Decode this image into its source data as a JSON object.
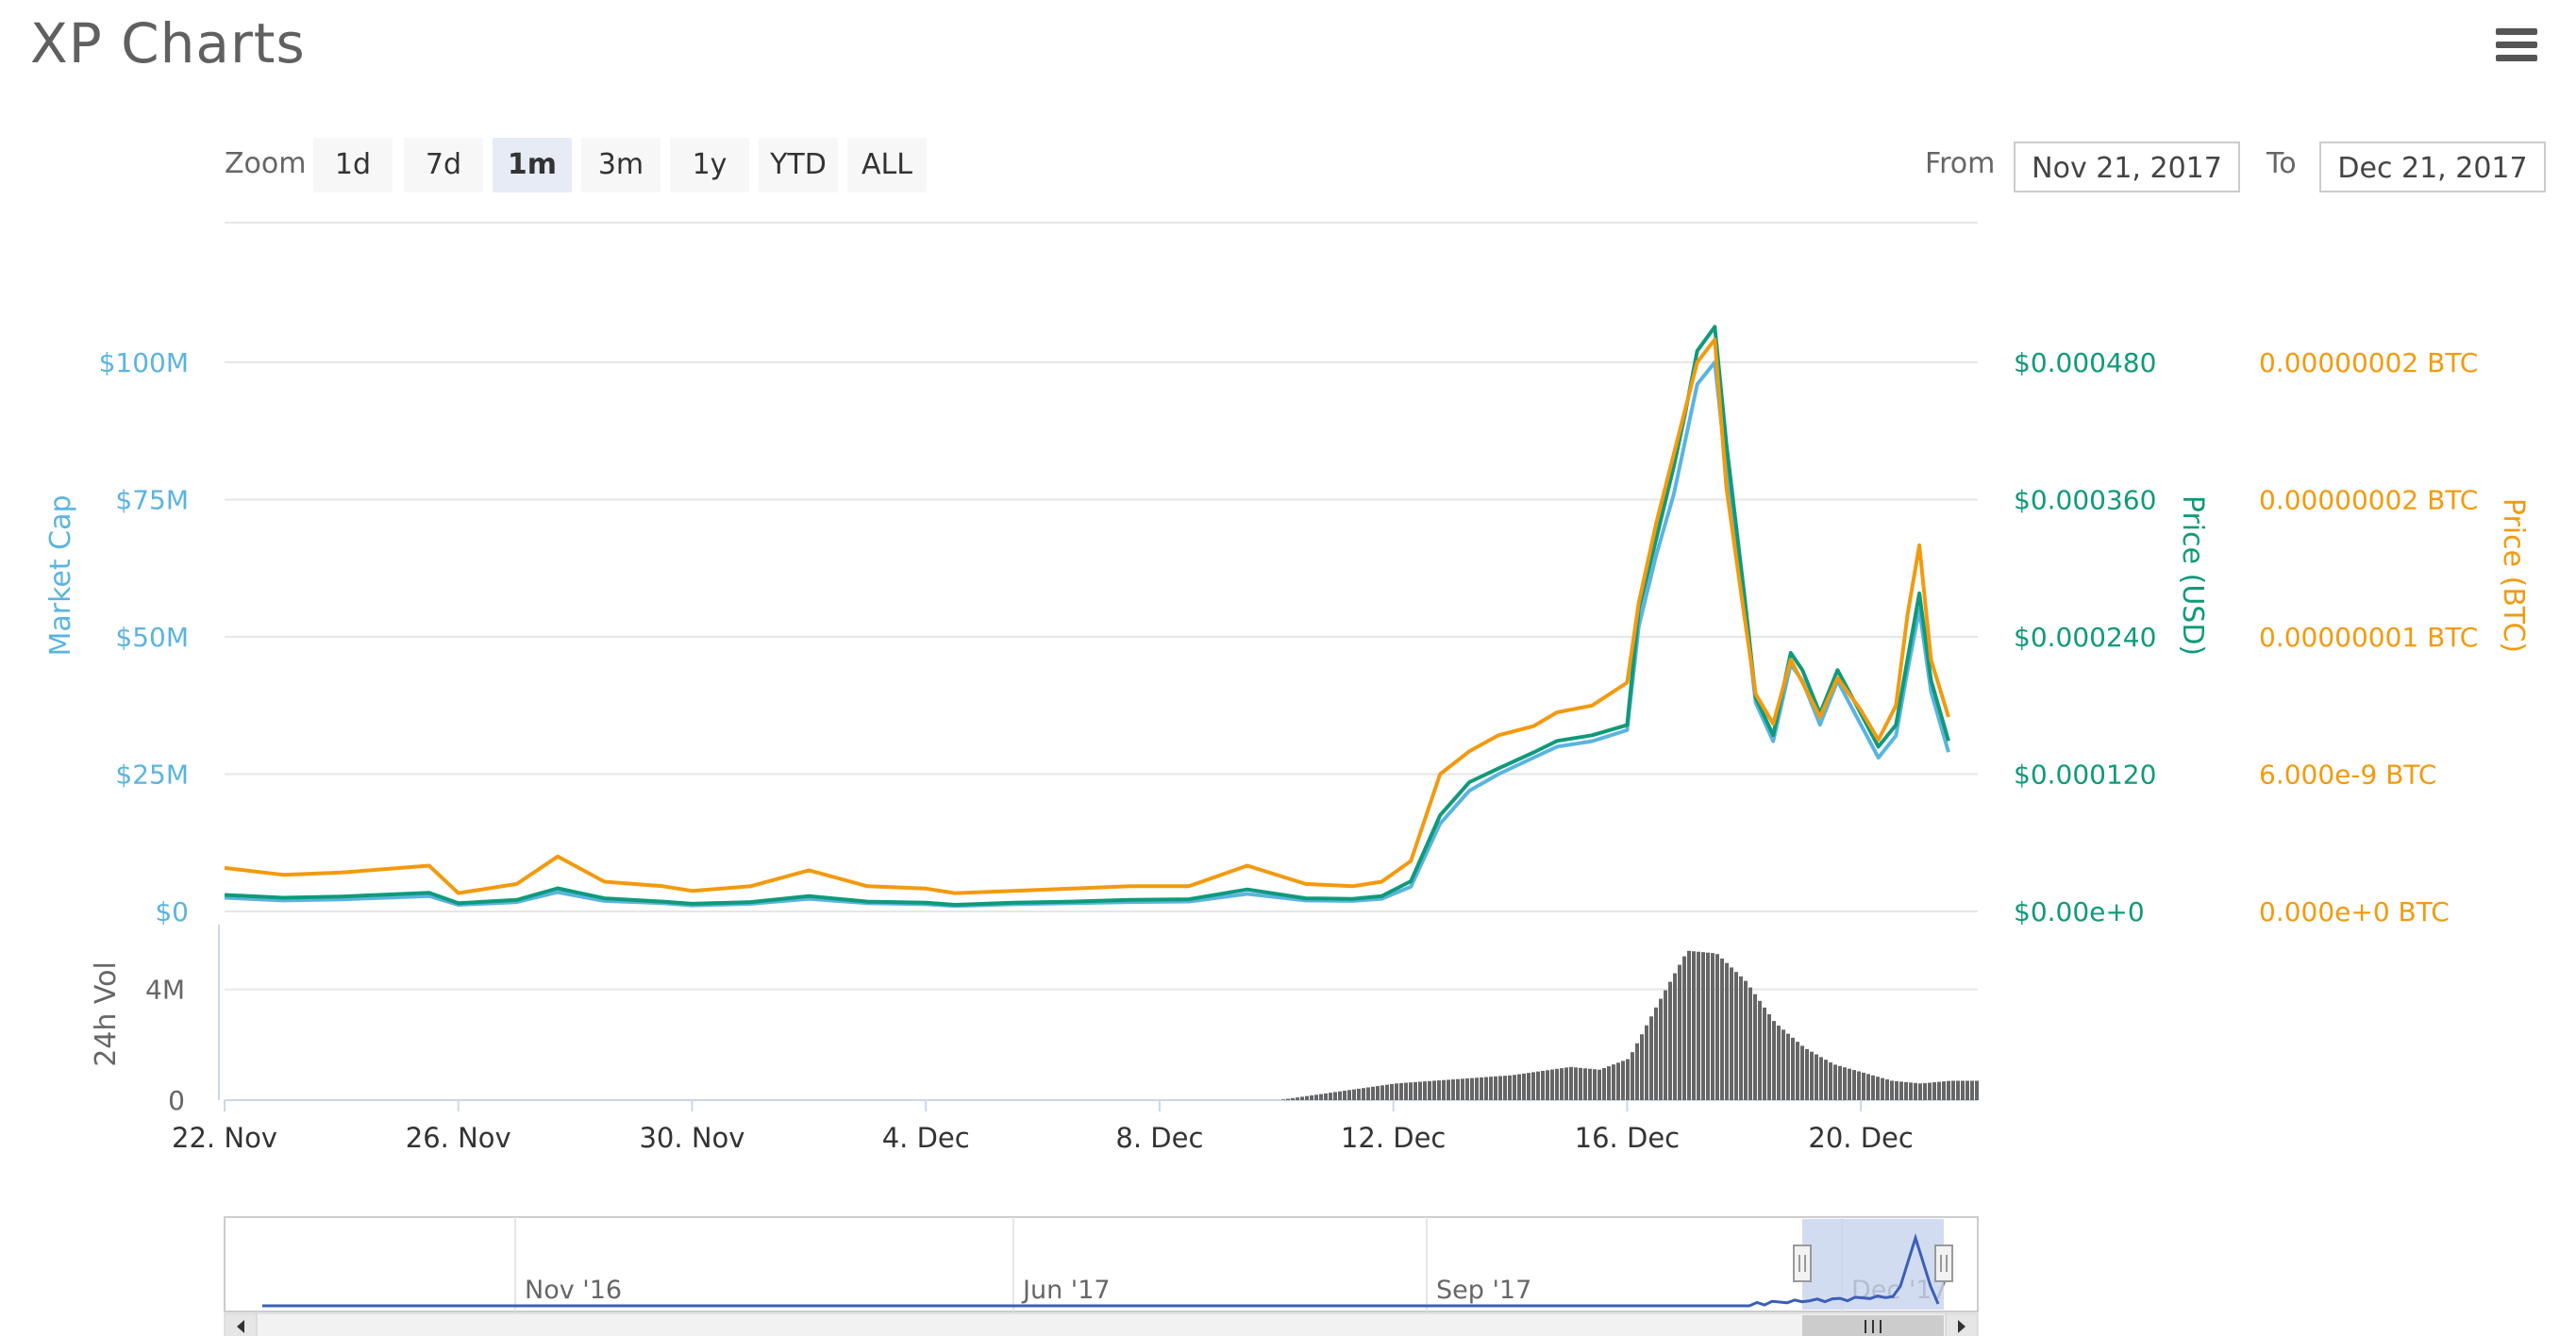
{
  "title": "XP Charts",
  "menu_icon": "hamburger-menu-icon",
  "zoom": {
    "label": "Zoom",
    "buttons": [
      "1d",
      "7d",
      "1m",
      "3m",
      "1y",
      "YTD",
      "ALL"
    ],
    "active": "1m"
  },
  "range": {
    "from_label": "From",
    "from_value": "Nov 21, 2017",
    "to_label": "To",
    "to_value": "Dec 21, 2017"
  },
  "colors": {
    "market_cap": "#5ab4e0",
    "price_usd": "#0f9a7a",
    "price_btc": "#f29a0e",
    "volume": "#666666",
    "navigator": "#3b5fb6",
    "navigator_mask": "#c7d3ee"
  },
  "chart_data": {
    "type": "line",
    "x_label_dates": [
      "22. Nov",
      "26. Nov",
      "30. Nov",
      "4. Dec",
      "8. Dec",
      "12. Dec",
      "16. Dec",
      "20. Dec"
    ],
    "x_day_range": [
      22,
      52
    ],
    "series": [
      {
        "name": "Market Cap",
        "axis": "left",
        "ticks": [
          "$0",
          "$25M",
          "$50M",
          "$75M",
          "$100M"
        ],
        "ylim": [
          0,
          100
        ],
        "unit": "M USD",
        "x": [
          22.0,
          23.0,
          24.0,
          25.5,
          26.0,
          27.0,
          27.7,
          28.5,
          29.5,
          30.0,
          31.0,
          32.0,
          33.0,
          34.0,
          34.5,
          35.5,
          36.5,
          37.5,
          38.5,
          39.5,
          40.5,
          41.3,
          41.8,
          42.3,
          42.8,
          43.3,
          43.8,
          44.4,
          44.8,
          45.4,
          46.0,
          46.2,
          46.5,
          46.8,
          47.0,
          47.2,
          47.5,
          47.7,
          48.0,
          48.2,
          48.5,
          48.8,
          49.0,
          49.3,
          49.6,
          50.0,
          50.3,
          50.6,
          50.8,
          51.0,
          51.2,
          51.5
        ],
        "values": [
          2.5,
          2.0,
          2.2,
          2.8,
          1.2,
          1.7,
          3.5,
          1.9,
          1.5,
          1.1,
          1.4,
          2.3,
          1.5,
          1.3,
          1.0,
          1.3,
          1.5,
          1.7,
          1.8,
          3.2,
          2.0,
          1.9,
          2.3,
          4.5,
          16.0,
          22.0,
          25.0,
          28.0,
          30.0,
          31.0,
          33.0,
          52.0,
          65.0,
          76.0,
          86.0,
          96.0,
          100.0,
          80.0,
          56.0,
          38.0,
          31.0,
          45.0,
          42.0,
          34.0,
          42.0,
          34.0,
          28.0,
          32.0,
          44.0,
          55.0,
          40.0,
          29.0
        ]
      },
      {
        "name": "Price (USD)",
        "axis": "right-inner",
        "ticks": [
          "$0.00e+0",
          "$0.000120",
          "$0.000240",
          "$0.000360",
          "$0.000480"
        ],
        "ylim": [
          0,
          0.00048
        ],
        "values": [
          1.44e-05,
          1.2e-05,
          1.3e-05,
          1.63e-05,
          7.2e-06,
          1.01e-05,
          2.02e-05,
          1.15e-05,
          8.6e-06,
          6.7e-06,
          8.2e-06,
          1.34e-05,
          8.6e-06,
          7.7e-06,
          5.8e-06,
          7.7e-06,
          8.6e-06,
          1.01e-05,
          1.06e-05,
          1.92e-05,
          1.15e-05,
          1.1e-05,
          1.34e-05,
          2.64e-05,
          8.4e-05,
          0.000113,
          0.000125,
          0.000139,
          0.000149,
          0.000154,
          0.000163,
          0.000264,
          0.000326,
          0.000389,
          0.000437,
          0.00049,
          0.000511,
          0.000408,
          0.000279,
          0.000187,
          0.000154,
          0.000226,
          0.000211,
          0.000173,
          0.000211,
          0.000173,
          0.000144,
          0.000163,
          0.000221,
          0.000278,
          0.000202,
          0.000149
        ]
      },
      {
        "name": "Price (BTC)",
        "axis": "right-outer",
        "ticks": [
          "0.000e+0 BTC",
          "6.000e-9 BTC",
          "0.00000001 BTC",
          "0.00000002 BTC",
          "0.00000002 BTC"
        ],
        "ylim": [
          0,
          2.4e-08
        ],
        "values": [
          1.9e-09,
          1.6e-09,
          1.7e-09,
          2e-09,
          8e-10,
          1.2e-09,
          2.4e-09,
          1.3e-09,
          1.1e-09,
          9e-10,
          1.1e-09,
          1.8e-09,
          1.1e-09,
          1e-09,
          8e-10,
          9e-10,
          1e-09,
          1.1e-09,
          1.1e-09,
          2e-09,
          1.2e-09,
          1.1e-09,
          1.3e-09,
          2.2e-09,
          6e-09,
          7e-09,
          7.7e-09,
          8.1e-09,
          8.7e-09,
          9e-09,
          1e-08,
          1.35e-08,
          1.7e-08,
          2e-08,
          2.2e-08,
          2.4e-08,
          2.5e-08,
          1.85e-08,
          1.3e-08,
          9.5e-09,
          8.2e-09,
          1.1e-08,
          1e-08,
          8.5e-09,
          1.02e-08,
          8.8e-09,
          7.5e-09,
          9e-09,
          1.3e-08,
          1.6e-08,
          1.1e-08,
          8.5e-09
        ]
      }
    ],
    "axis_titles": {
      "left": "Market Cap",
      "right_inner": "Price (USD)",
      "right_outer": "Price (BTC)",
      "volume": "24h Vol"
    },
    "volume": {
      "name": "24h Vol",
      "ticks": [
        "0",
        "4M"
      ],
      "ylim": [
        0,
        6
      ],
      "unit": "M",
      "x": [
        22.0,
        38.0,
        40.0,
        41.0,
        42.0,
        43.0,
        44.0,
        45.0,
        45.5,
        46.0,
        46.5,
        47.0,
        47.5,
        48.0,
        48.5,
        49.0,
        49.5,
        50.0,
        50.5,
        51.0,
        51.5
      ],
      "values": [
        0,
        0,
        0,
        0.3,
        0.6,
        0.75,
        0.9,
        1.2,
        1.1,
        1.5,
        3.5,
        5.4,
        5.3,
        4.3,
        2.8,
        1.9,
        1.3,
        1.0,
        0.7,
        0.6,
        0.7
      ]
    },
    "navigator": {
      "labels": [
        "Nov '16",
        "Jun '17",
        "Sep '17",
        "Dec '17"
      ]
    },
    "grid": true
  }
}
